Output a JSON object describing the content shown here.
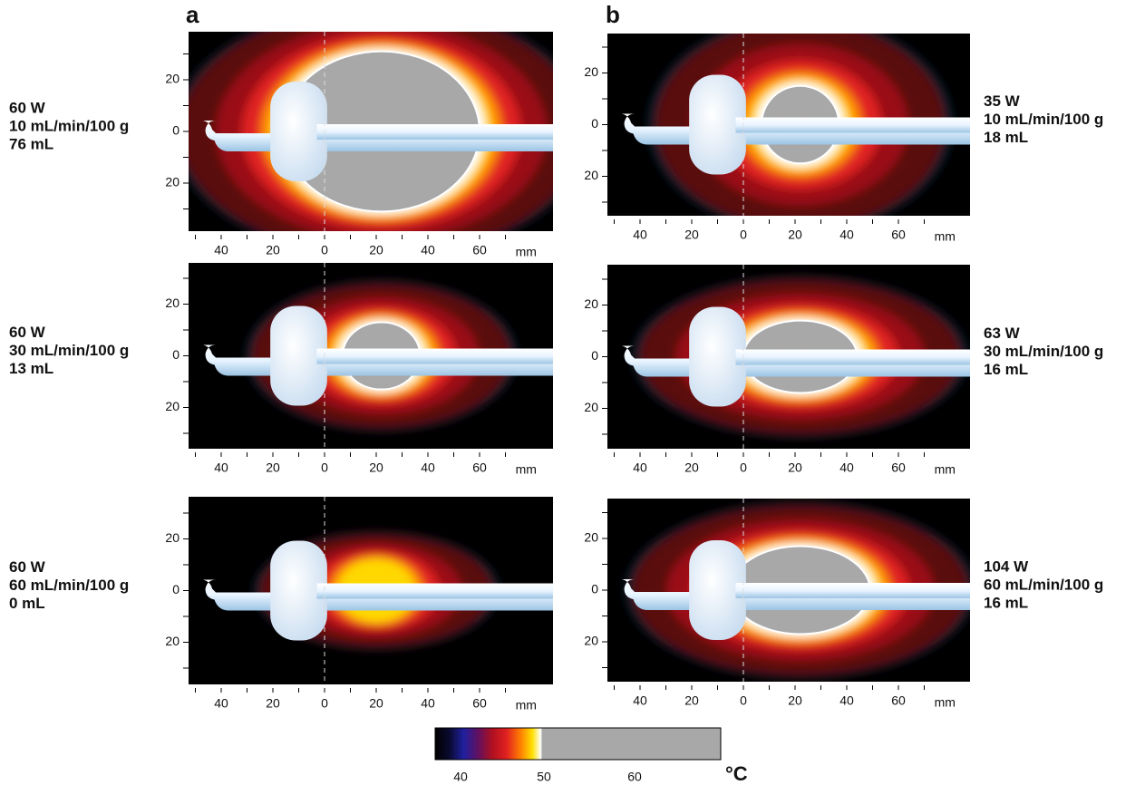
{
  "columns": [
    "a",
    "b"
  ],
  "panels": [
    {
      "column": "a",
      "label_lines": [
        "60 W",
        "10 mL/min/100 g",
        "76 mL"
      ],
      "yticks": [
        "20",
        "0",
        "20"
      ],
      "xticks": [
        "40",
        "20",
        "0",
        "20",
        "40",
        "60"
      ],
      "x_unit": "mm"
    },
    {
      "column": "a",
      "label_lines": [
        "60 W",
        "30 mL/min/100 g",
        "13 mL"
      ],
      "yticks": [
        "20",
        "0",
        "20"
      ],
      "xticks": [
        "40",
        "20",
        "0",
        "20",
        "40",
        "60"
      ],
      "x_unit": "mm"
    },
    {
      "column": "a",
      "label_lines": [
        "60 W",
        "60 mL/min/100 g",
        "0 mL"
      ],
      "yticks": [
        "20",
        "0",
        "20"
      ],
      "xticks": [
        "40",
        "20",
        "0",
        "20",
        "40",
        "60"
      ],
      "x_unit": "mm"
    },
    {
      "column": "b",
      "label_lines": [
        "35 W",
        "10 mL/min/100 g",
        "18 mL"
      ],
      "yticks": [
        "20",
        "0",
        "20"
      ],
      "xticks": [
        "40",
        "20",
        "0",
        "20",
        "40",
        "60"
      ],
      "x_unit": "mm"
    },
    {
      "column": "b",
      "label_lines": [
        "63 W",
        "30 mL/min/100 g",
        "16 mL"
      ],
      "yticks": [
        "20",
        "0",
        "20"
      ],
      "xticks": [
        "40",
        "20",
        "0",
        "20",
        "40",
        "60"
      ],
      "x_unit": "mm"
    },
    {
      "column": "b",
      "label_lines": [
        "104 W",
        "60 mL/min/100 g",
        "16 mL"
      ],
      "yticks": [
        "20",
        "0",
        "20"
      ],
      "xticks": [
        "40",
        "20",
        "0",
        "20",
        "40",
        "60"
      ],
      "x_unit": "mm"
    }
  ],
  "colorbar": {
    "ticks": [
      "40",
      "50",
      "60"
    ],
    "unit": "°C"
  }
}
